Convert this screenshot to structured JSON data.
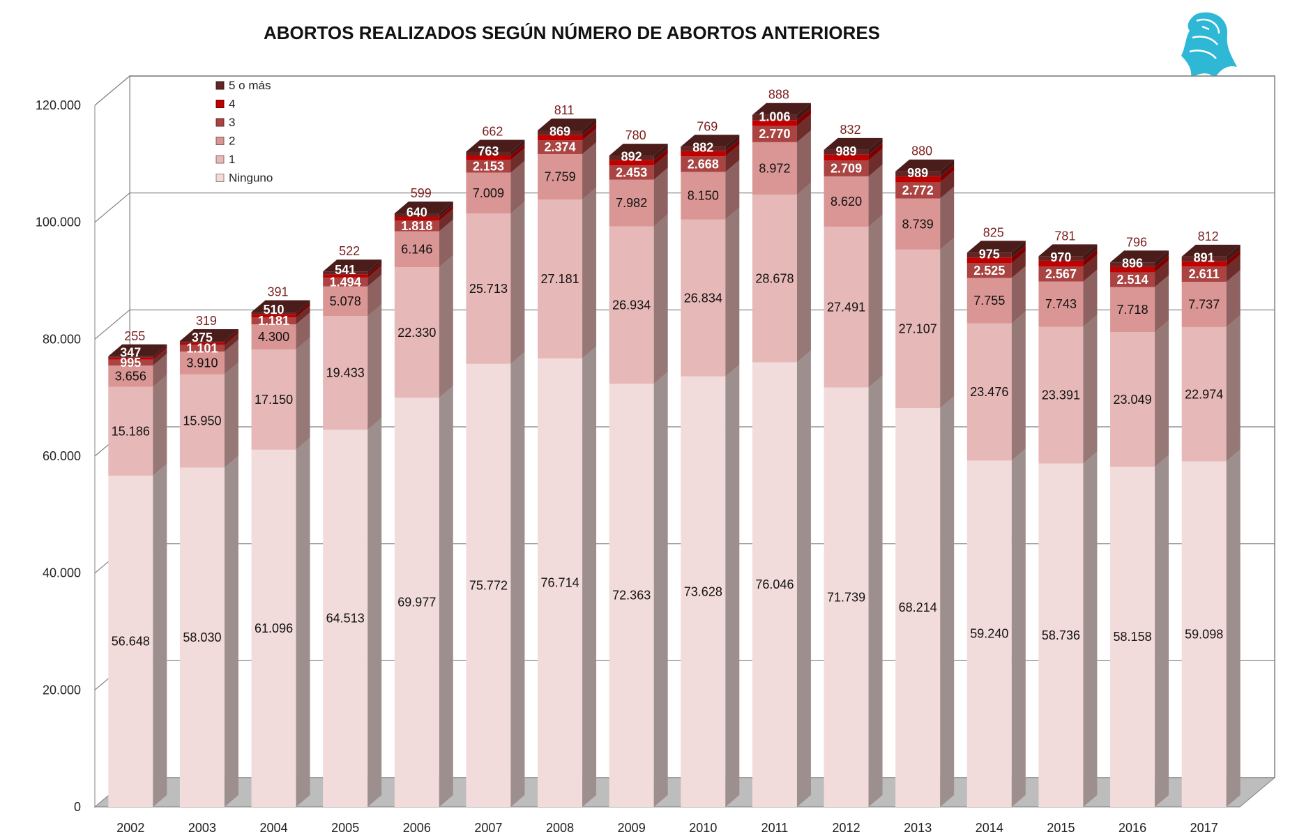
{
  "chart_data": {
    "type": "bar",
    "stacked": true,
    "title": "ABORTOS REALIZADOS SEGÚN NÚMERO DE ABORTOS ANTERIORES",
    "xlabel": "",
    "ylabel": "",
    "ylim": [
      0,
      120000
    ],
    "yticks": [
      "0",
      "20.000",
      "40.000",
      "60.000",
      "80.000",
      "100.000",
      "120.000"
    ],
    "grid": true,
    "legend_position": "top-left",
    "categories": [
      "2002",
      "2003",
      "2004",
      "2005",
      "2006",
      "2007",
      "2008",
      "2009",
      "2010",
      "2011",
      "2012",
      "2013",
      "2014",
      "2015",
      "2016",
      "2017"
    ],
    "series": [
      {
        "name": "Ninguno",
        "color": "#f2dcdb",
        "values": [
          56648,
          58030,
          61096,
          64513,
          69977,
          75772,
          76714,
          72363,
          73628,
          76046,
          71739,
          68214,
          59240,
          58736,
          58158,
          59098
        ],
        "labels": [
          "56.648",
          "58.030",
          "61.096",
          "64.513",
          "69.977",
          "75.772",
          "76.714",
          "72.363",
          "73.628",
          "76.046",
          "71.739",
          "68.214",
          "59.240",
          "58.736",
          "58.158",
          "59.098"
        ]
      },
      {
        "name": "1",
        "color": "#e6b8b7",
        "values": [
          15186,
          15950,
          17150,
          19433,
          22330,
          25713,
          27181,
          26934,
          26834,
          28678,
          27491,
          27107,
          23476,
          23391,
          23049,
          22974
        ],
        "labels": [
          "15.186",
          "15.950",
          "17.150",
          "19.433",
          "22.330",
          "25.713",
          "27.181",
          "26.934",
          "26.834",
          "28.678",
          "27.491",
          "27.107",
          "23.476",
          "23.391",
          "23.049",
          "22.974"
        ]
      },
      {
        "name": "2",
        "color": "#da9694",
        "values": [
          3656,
          3910,
          4300,
          5078,
          6146,
          7009,
          7759,
          7982,
          8150,
          8972,
          8620,
          8739,
          7755,
          7743,
          7718,
          7737
        ],
        "labels": [
          "3.656",
          "3.910",
          "4.300",
          "5.078",
          "6.146",
          "7.009",
          "7.759",
          "7.982",
          "8.150",
          "8.972",
          "8.620",
          "8.739",
          "7.755",
          "7.743",
          "7.718",
          "7.737"
        ]
      },
      {
        "name": "3",
        "color": "#a94442",
        "values": [
          995,
          1101,
          1181,
          1494,
          1818,
          2153,
          2374,
          2453,
          2668,
          2770,
          2709,
          2772,
          2525,
          2567,
          2514,
          2611
        ],
        "labels": [
          "995",
          "1.101",
          "1.181",
          "1.494",
          "1.818",
          "2.153",
          "2.374",
          "2.453",
          "2.668",
          "2.770",
          "2.709",
          "2.772",
          "2.525",
          "2.567",
          "2.514",
          "2.611"
        ]
      },
      {
        "name": "4",
        "color": "#c00000",
        "values": [
          347,
          375,
          510,
          541,
          640,
          763,
          869,
          892,
          882,
          1006,
          989,
          989,
          975,
          970,
          896,
          891
        ],
        "labels": [
          "347",
          "375",
          "510",
          "541",
          "640",
          "763",
          "869",
          "892",
          "882",
          "1.006",
          "989",
          "989",
          "975",
          "970",
          "896",
          "891"
        ]
      },
      {
        "name": "5 o más",
        "color": "#632523",
        "values": [
          255,
          319,
          391,
          522,
          599,
          662,
          811,
          780,
          769,
          888,
          832,
          880,
          825,
          781,
          796,
          812
        ],
        "labels": [
          "255",
          "319",
          "391",
          "522",
          "599",
          "662",
          "811",
          "780",
          "769",
          "888",
          "832",
          "880",
          "825",
          "781",
          "796",
          "812"
        ]
      }
    ]
  }
}
